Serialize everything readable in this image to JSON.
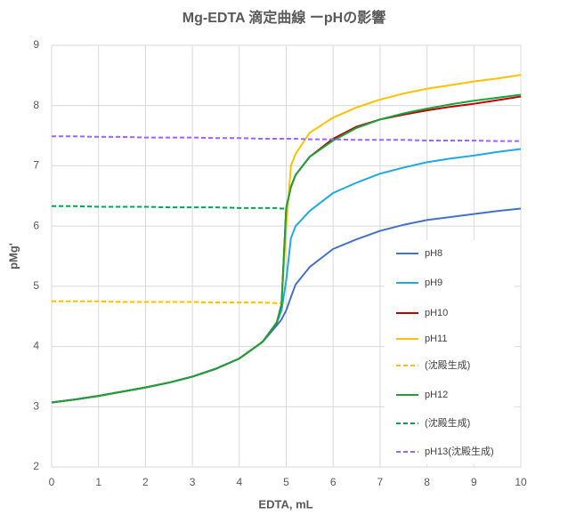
{
  "chart_data": {
    "type": "line",
    "title": "Mg-EDTA 滴定曲線 ーpHの影響",
    "x_label": "EDTA, mL",
    "y_label": "pMg'",
    "x": [
      0,
      0.5,
      1,
      1.5,
      2,
      2.5,
      3,
      3.5,
      4,
      4.5,
      4.8,
      4.9,
      5,
      5.1,
      5.2,
      5.5,
      6,
      6.5,
      7,
      7.5,
      8,
      8.5,
      9,
      9.5,
      10
    ],
    "xlim": [
      0,
      10
    ],
    "xticks": [
      0,
      1,
      2,
      3,
      4,
      5,
      6,
      7,
      8,
      9,
      10
    ],
    "ylim": [
      2,
      9
    ],
    "yticks": [
      2,
      3,
      4,
      5,
      6,
      7,
      8,
      9
    ],
    "grid": true,
    "legend": "right",
    "series": [
      {
        "name": "pH8",
        "color": "#4472c4",
        "dashed": false,
        "values": [
          3.07,
          3.12,
          3.18,
          3.25,
          3.32,
          3.4,
          3.5,
          3.63,
          3.8,
          4.08,
          4.35,
          4.45,
          4.6,
          4.82,
          5.03,
          5.32,
          5.62,
          5.78,
          5.92,
          6.02,
          6.1,
          6.15,
          6.2,
          6.25,
          6.29
        ]
      },
      {
        "name": "pH9",
        "color": "#20a8e0",
        "dashed": false,
        "values": [
          3.07,
          3.12,
          3.18,
          3.25,
          3.32,
          3.4,
          3.5,
          3.63,
          3.8,
          4.08,
          4.4,
          4.6,
          5.1,
          5.8,
          6.0,
          6.25,
          6.55,
          6.72,
          6.87,
          6.97,
          7.06,
          7.12,
          7.17,
          7.23,
          7.28
        ]
      },
      {
        "name": "pH10",
        "color": "#c00000",
        "dashed": false,
        "values": [
          3.07,
          3.12,
          3.18,
          3.25,
          3.32,
          3.4,
          3.5,
          3.63,
          3.8,
          4.08,
          4.4,
          4.7,
          6.3,
          6.65,
          6.85,
          7.15,
          7.45,
          7.65,
          7.77,
          7.85,
          7.92,
          7.98,
          8.03,
          8.09,
          8.15
        ]
      },
      {
        "name": "pH11",
        "color": "#ffc000",
        "dashed": false,
        "values": [
          null,
          null,
          null,
          null,
          null,
          null,
          null,
          null,
          null,
          null,
          null,
          4.72,
          6.0,
          7.0,
          7.2,
          7.55,
          7.8,
          7.97,
          8.1,
          8.2,
          8.28,
          8.34,
          8.4,
          8.45,
          8.51
        ]
      },
      {
        "name": "(沈殿生成)",
        "color": "#ffc000",
        "dashed": true,
        "values": [
          4.75,
          4.75,
          4.75,
          4.74,
          4.74,
          4.74,
          4.74,
          4.73,
          4.73,
          4.73,
          4.72,
          4.72,
          null,
          null,
          null,
          null,
          null,
          null,
          null,
          null,
          null,
          null,
          null,
          null,
          null
        ]
      },
      {
        "name": "pH12",
        "color": "#1aa33a",
        "dashed": false,
        "values": [
          3.07,
          3.12,
          3.18,
          3.25,
          3.32,
          3.4,
          3.5,
          3.63,
          3.8,
          4.08,
          4.4,
          4.7,
          6.3,
          6.65,
          6.85,
          7.15,
          7.42,
          7.63,
          7.77,
          7.87,
          7.95,
          8.02,
          8.08,
          8.13,
          8.18
        ]
      },
      {
        "name": "(沈殿生成)",
        "color": "#00a550",
        "dashed": true,
        "values": [
          6.33,
          6.33,
          6.32,
          6.32,
          6.32,
          6.31,
          6.31,
          6.31,
          6.3,
          6.3,
          6.3,
          6.29,
          6.29,
          null,
          null,
          null,
          null,
          null,
          null,
          null,
          null,
          null,
          null,
          null,
          null
        ]
      },
      {
        "name": "pH13(沈殿生成)",
        "color": "#9966ff",
        "dashed": true,
        "values": [
          7.49,
          7.49,
          7.48,
          7.48,
          7.47,
          7.47,
          7.47,
          7.46,
          7.46,
          7.45,
          7.45,
          7.45,
          7.45,
          7.45,
          7.45,
          7.44,
          7.44,
          7.43,
          7.43,
          7.43,
          7.42,
          7.42,
          7.42,
          7.41,
          7.41
        ]
      }
    ]
  }
}
